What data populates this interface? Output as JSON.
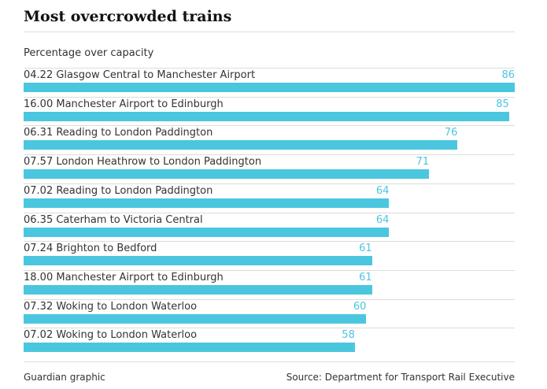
{
  "chart_data": {
    "type": "bar",
    "orientation": "horizontal",
    "title": "Most overcrowded trains",
    "subtitle": "Percentage over capacity",
    "categories": [
      "04.22 Glasgow Central to Manchester Airport",
      "16.00 Manchester Airport to Edinburgh",
      "06.31 Reading to London Paddington",
      "07.57 London Heathrow to London Paddington",
      "07.02 Reading to London Paddington",
      "06.35 Caterham to Victoria Central",
      "07.24 Brighton to Bedford",
      "18.00 Manchester Airport to Edinburgh",
      "07.32 Woking to London Waterloo",
      "07.02 Woking to London Waterloo"
    ],
    "values": [
      86,
      85,
      76,
      71,
      64,
      64,
      61,
      61,
      60,
      58
    ],
    "xlim": [
      0,
      86
    ],
    "grid": false,
    "legend": "none"
  },
  "colors": {
    "bar": "#4bc6df",
    "value_text": "#4bc6df"
  },
  "footer": {
    "credit": "Guardian graphic",
    "source": "Source: Department for Transport Rail Executive"
  }
}
